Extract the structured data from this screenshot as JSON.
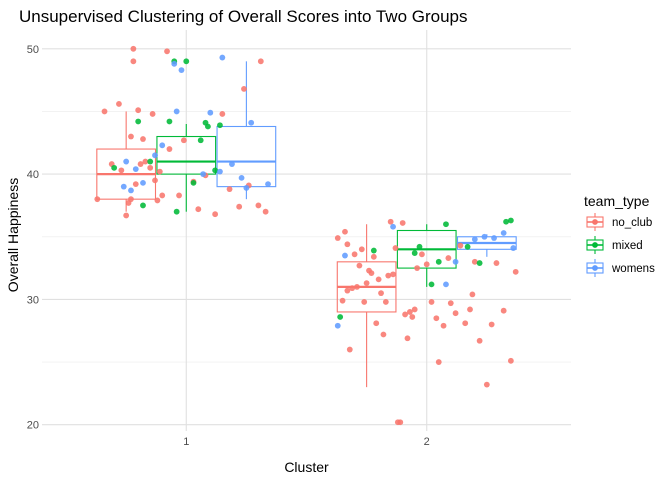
{
  "chart_data": {
    "type": "boxplot-jitter",
    "title": "Unsupervised Clustering of Overall Scores into Two Groups",
    "xlabel": "Cluster",
    "ylabel": "Overall Happiness",
    "categories": [
      "1",
      "2"
    ],
    "yticks": [
      20,
      30,
      40,
      50
    ],
    "ylim": [
      19.5,
      51.5
    ],
    "grid": true,
    "legend": {
      "title": "team_type",
      "placement": "right"
    },
    "series": [
      {
        "name": "no_club",
        "color": "#F8766D",
        "boxes": [
          {
            "cluster": "1",
            "min": 37,
            "q1": 38,
            "median": 40,
            "q3": 42,
            "max": 45
          },
          {
            "cluster": "2",
            "min": 23,
            "q1": 29,
            "median": 31,
            "q3": 33,
            "max": 36
          }
        ],
        "points": [
          {
            "x": 0.63,
            "y": 38
          },
          {
            "x": 0.66,
            "y": 45
          },
          {
            "x": 0.69,
            "y": 40.8
          },
          {
            "x": 0.72,
            "y": 45.6
          },
          {
            "x": 0.73,
            "y": 40.3
          },
          {
            "x": 0.75,
            "y": 36.7
          },
          {
            "x": 0.76,
            "y": 37.7
          },
          {
            "x": 0.77,
            "y": 43.0
          },
          {
            "x": 0.77,
            "y": 38.0
          },
          {
            "x": 0.78,
            "y": 50
          },
          {
            "x": 0.78,
            "y": 49
          },
          {
            "x": 0.79,
            "y": 39.2
          },
          {
            "x": 0.8,
            "y": 45.1
          },
          {
            "x": 0.81,
            "y": 40.8
          },
          {
            "x": 0.82,
            "y": 42.8
          },
          {
            "x": 0.83,
            "y": 41.0
          },
          {
            "x": 0.85,
            "y": 40.5
          },
          {
            "x": 0.86,
            "y": 44.8
          },
          {
            "x": 0.87,
            "y": 39.5
          },
          {
            "x": 0.88,
            "y": 37.9
          },
          {
            "x": 0.89,
            "y": 40.2
          },
          {
            "x": 0.9,
            "y": 38.3
          },
          {
            "x": 0.92,
            "y": 49.8
          },
          {
            "x": 0.93,
            "y": 42.0
          },
          {
            "x": 0.97,
            "y": 38.3
          },
          {
            "x": 0.99,
            "y": 42.7
          },
          {
            "x": 1.03,
            "y": 39.4
          },
          {
            "x": 1.05,
            "y": 37.2
          },
          {
            "x": 1.08,
            "y": 39.9
          },
          {
            "x": 1.12,
            "y": 36.8
          },
          {
            "x": 1.15,
            "y": 44.8
          },
          {
            "x": 1.18,
            "y": 38.8
          },
          {
            "x": 1.22,
            "y": 37.4
          },
          {
            "x": 1.24,
            "y": 46.8
          },
          {
            "x": 1.26,
            "y": 39.1
          },
          {
            "x": 1.3,
            "y": 37.5
          },
          {
            "x": 1.31,
            "y": 49
          },
          {
            "x": 1.33,
            "y": 37.0
          },
          {
            "x": 1.63,
            "y": 34.9
          },
          {
            "x": 1.65,
            "y": 29.9
          },
          {
            "x": 1.66,
            "y": 35.4
          },
          {
            "x": 1.67,
            "y": 34.4
          },
          {
            "x": 1.67,
            "y": 30.7
          },
          {
            "x": 1.68,
            "y": 26.0
          },
          {
            "x": 1.69,
            "y": 30.9
          },
          {
            "x": 1.7,
            "y": 33.6
          },
          {
            "x": 1.71,
            "y": 31.0
          },
          {
            "x": 1.72,
            "y": 32.7
          },
          {
            "x": 1.73,
            "y": 34.0
          },
          {
            "x": 1.74,
            "y": 29.8
          },
          {
            "x": 1.75,
            "y": 31.3
          },
          {
            "x": 1.76,
            "y": 32.3
          },
          {
            "x": 1.77,
            "y": 32.1
          },
          {
            "x": 1.78,
            "y": 33.4
          },
          {
            "x": 1.79,
            "y": 28.1
          },
          {
            "x": 1.8,
            "y": 31.6
          },
          {
            "x": 1.81,
            "y": 30.5
          },
          {
            "x": 1.82,
            "y": 27.2
          },
          {
            "x": 1.83,
            "y": 29.8
          },
          {
            "x": 1.84,
            "y": 31.9
          },
          {
            "x": 1.85,
            "y": 36.2
          },
          {
            "x": 1.86,
            "y": 32.0
          },
          {
            "x": 1.87,
            "y": 34.1
          },
          {
            "x": 1.88,
            "y": 20.2
          },
          {
            "x": 1.89,
            "y": 20.2
          },
          {
            "x": 1.9,
            "y": 36.1
          },
          {
            "x": 1.91,
            "y": 28.8
          },
          {
            "x": 1.92,
            "y": 26.9
          },
          {
            "x": 1.93,
            "y": 29.0
          },
          {
            "x": 1.94,
            "y": 28.6
          },
          {
            "x": 1.95,
            "y": 29.2
          },
          {
            "x": 1.96,
            "y": 32.5
          },
          {
            "x": 1.98,
            "y": 33.6
          },
          {
            "x": 2.0,
            "y": 32.8
          },
          {
            "x": 2.02,
            "y": 29.8
          },
          {
            "x": 2.04,
            "y": 28.5
          },
          {
            "x": 2.05,
            "y": 25.0
          },
          {
            "x": 2.07,
            "y": 27.9
          },
          {
            "x": 2.09,
            "y": 33.3
          },
          {
            "x": 2.1,
            "y": 29.7
          },
          {
            "x": 2.12,
            "y": 28.9
          },
          {
            "x": 2.14,
            "y": 34.3
          },
          {
            "x": 2.16,
            "y": 28.1
          },
          {
            "x": 2.18,
            "y": 29.2
          },
          {
            "x": 2.19,
            "y": 30.4
          },
          {
            "x": 2.2,
            "y": 33.0
          },
          {
            "x": 2.22,
            "y": 26.7
          },
          {
            "x": 2.25,
            "y": 23.2
          },
          {
            "x": 2.27,
            "y": 28.0
          },
          {
            "x": 2.29,
            "y": 32.9
          },
          {
            "x": 2.32,
            "y": 29.1
          },
          {
            "x": 2.35,
            "y": 25.1
          },
          {
            "x": 2.37,
            "y": 32.2
          }
        ]
      },
      {
        "name": "mixed",
        "color": "#00BA38",
        "boxes": [
          {
            "cluster": "1",
            "min": 37,
            "q1": 40,
            "median": 41,
            "q3": 43,
            "max": 44
          },
          {
            "cluster": "2",
            "min": 31,
            "q1": 32.5,
            "median": 34,
            "q3": 35.5,
            "max": 36
          }
        ],
        "points": [
          {
            "x": 0.7,
            "y": 40.5
          },
          {
            "x": 0.8,
            "y": 44.2
          },
          {
            "x": 0.82,
            "y": 37.5
          },
          {
            "x": 0.85,
            "y": 41.0
          },
          {
            "x": 0.93,
            "y": 44.2
          },
          {
            "x": 0.95,
            "y": 49
          },
          {
            "x": 0.96,
            "y": 37.0
          },
          {
            "x": 1.0,
            "y": 49
          },
          {
            "x": 1.03,
            "y": 39.3
          },
          {
            "x": 1.06,
            "y": 42.7
          },
          {
            "x": 1.08,
            "y": 44.1
          },
          {
            "x": 1.09,
            "y": 43.8
          },
          {
            "x": 1.12,
            "y": 40.3
          },
          {
            "x": 1.14,
            "y": 43.9
          },
          {
            "x": 1.64,
            "y": 28.6
          },
          {
            "x": 1.78,
            "y": 33.9
          },
          {
            "x": 1.95,
            "y": 33.7
          },
          {
            "x": 1.97,
            "y": 34.2
          },
          {
            "x": 2.02,
            "y": 31.2
          },
          {
            "x": 2.05,
            "y": 33.0
          },
          {
            "x": 2.08,
            "y": 36.0
          },
          {
            "x": 2.17,
            "y": 34.2
          },
          {
            "x": 2.22,
            "y": 32.9
          },
          {
            "x": 2.33,
            "y": 36.2
          },
          {
            "x": 2.35,
            "y": 36.3
          }
        ]
      },
      {
        "name": "womens",
        "color": "#619CFF",
        "boxes": [
          {
            "cluster": "1",
            "min": 38,
            "q1": 39,
            "median": 41,
            "q3": 43.8,
            "max": 49
          },
          {
            "cluster": "2",
            "min": 33.4,
            "q1": 34,
            "median": 34.5,
            "q3": 35,
            "max": 35.2
          }
        ],
        "points": [
          {
            "x": 0.74,
            "y": 39.0
          },
          {
            "x": 0.75,
            "y": 41.0
          },
          {
            "x": 0.77,
            "y": 38.7
          },
          {
            "x": 0.79,
            "y": 40.4
          },
          {
            "x": 0.82,
            "y": 39.3
          },
          {
            "x": 0.87,
            "y": 41.5
          },
          {
            "x": 0.9,
            "y": 42.3
          },
          {
            "x": 0.95,
            "y": 48.8
          },
          {
            "x": 0.96,
            "y": 45.0
          },
          {
            "x": 0.98,
            "y": 48.3
          },
          {
            "x": 1.07,
            "y": 40.0
          },
          {
            "x": 1.1,
            "y": 44.9
          },
          {
            "x": 1.14,
            "y": 40.2
          },
          {
            "x": 1.15,
            "y": 49.3
          },
          {
            "x": 1.19,
            "y": 40.8
          },
          {
            "x": 1.23,
            "y": 39.7
          },
          {
            "x": 1.25,
            "y": 38.9
          },
          {
            "x": 1.27,
            "y": 44.1
          },
          {
            "x": 1.34,
            "y": 39.2
          },
          {
            "x": 1.63,
            "y": 27.9
          },
          {
            "x": 1.66,
            "y": 33.5
          },
          {
            "x": 1.86,
            "y": 35.8
          },
          {
            "x": 2.08,
            "y": 31.2
          },
          {
            "x": 2.12,
            "y": 33.0
          },
          {
            "x": 2.2,
            "y": 34.8
          },
          {
            "x": 2.24,
            "y": 35.0
          },
          {
            "x": 2.28,
            "y": 34.9
          },
          {
            "x": 2.32,
            "y": 35.3
          },
          {
            "x": 2.36,
            "y": 34.1
          }
        ]
      }
    ]
  }
}
